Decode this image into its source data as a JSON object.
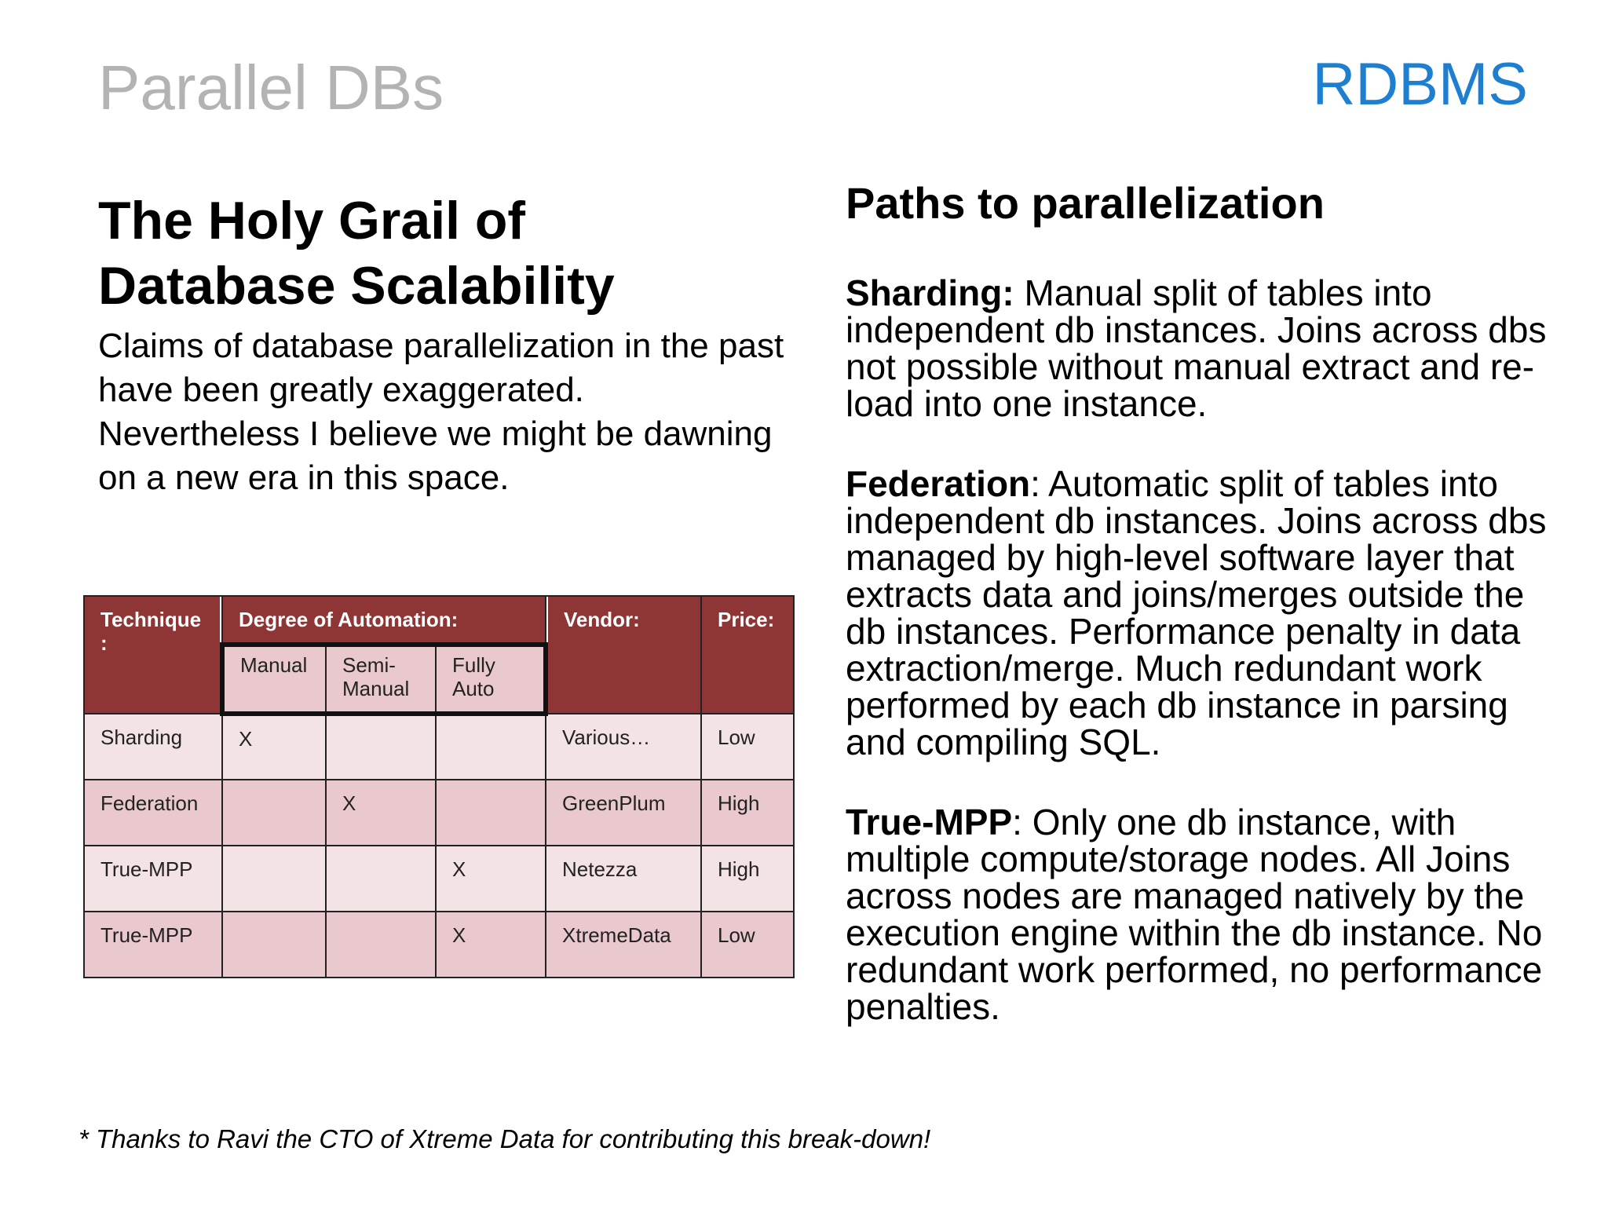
{
  "slide": {
    "title": "Parallel DBs",
    "section_label": "RDBMS"
  },
  "left": {
    "heading_line1": "The Holy Grail of",
    "heading_line2": "Database Scalability",
    "intro": "Claims of database parallelization in the past have been greatly exaggerated. Nevertheless I believe we might be dawning on a new era in this space."
  },
  "table": {
    "headers": {
      "technique": "Technique :",
      "degree": "Degree of Automation:",
      "vendor": "Vendor:",
      "price": "Price:"
    },
    "sub_headers": [
      "Manual",
      "Semi- Manual",
      "Fully Auto"
    ],
    "rows": [
      {
        "technique": "Sharding",
        "manual": "X",
        "semi": "",
        "fully": "",
        "vendor": "Various…",
        "price": "Low"
      },
      {
        "technique": "Federation",
        "manual": "",
        "semi": "X",
        "fully": "",
        "vendor": "GreenPlum",
        "price": "High"
      },
      {
        "technique": "True-MPP",
        "manual": "",
        "semi": "",
        "fully": "X",
        "vendor": "Netezza",
        "price": "High"
      },
      {
        "technique": "True-MPP",
        "manual": "",
        "semi": "",
        "fully": "X",
        "vendor": "XtremeData",
        "price": "Low"
      }
    ]
  },
  "right": {
    "heading": "Paths to parallelization",
    "paragraphs": [
      {
        "term": "Sharding:",
        "text": " Manual split of tables into independent db instances.  Joins across dbs not possible without manual extract and re-load into one instance."
      },
      {
        "term": "Federation",
        "text": ": Automatic split of tables into independent db instances.  Joins across dbs managed by high-level software layer that extracts data and joins/merges outside the db instances.  Performance penalty in data extraction/merge.  Much redundant work performed by each db instance in parsing and compiling SQL."
      },
      {
        "term": "True-MPP",
        "text": ": Only one db instance, with multiple compute/storage nodes.  All Joins across nodes are managed natively by the execution engine within the db instance.  No redundant work performed, no performance penalties."
      }
    ]
  },
  "footnote": "* Thanks to Ravi the CTO of Xtreme Data for contributing this break-down!"
}
